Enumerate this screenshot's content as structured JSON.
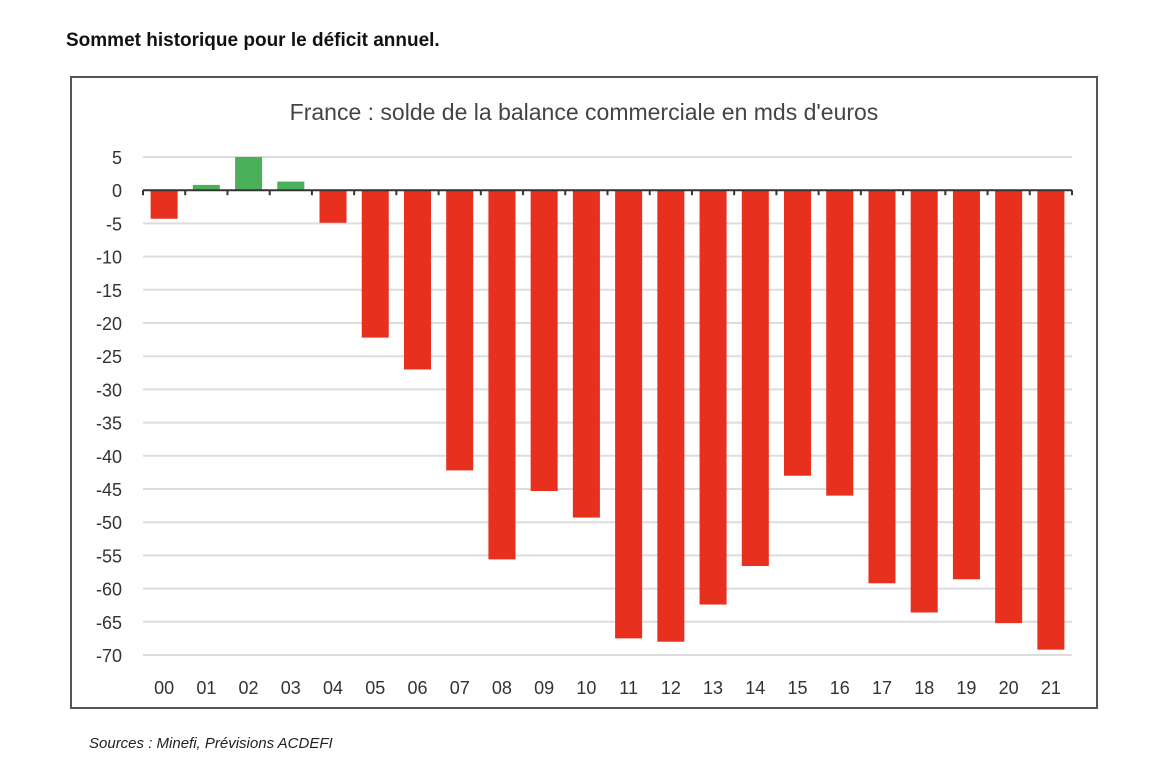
{
  "headline": "Sommet historique pour le déficit annuel.",
  "source": "Sources : Minefi, Prévisions ACDEFI",
  "colors": {
    "positive": "#4caf5a",
    "negative": "#e8301f",
    "grid": "#dddddd",
    "axis": "#333333"
  },
  "chart_data": {
    "type": "bar",
    "title": "France : solde de la balance commerciale en mds d'euros",
    "xlabel": "",
    "ylabel": "",
    "ylim": [
      -70,
      5
    ],
    "yticks": [
      5,
      0,
      -5,
      -10,
      -15,
      -20,
      -25,
      -30,
      -35,
      -40,
      -45,
      -50,
      -55,
      -60,
      -65,
      -70
    ],
    "grid": true,
    "categories": [
      "00",
      "01",
      "02",
      "03",
      "04",
      "05",
      "06",
      "07",
      "08",
      "09",
      "10",
      "11",
      "12",
      "13",
      "14",
      "15",
      "16",
      "17",
      "18",
      "19",
      "20",
      "21"
    ],
    "values": [
      -4.3,
      0.8,
      5.0,
      1.3,
      -4.9,
      -22.2,
      -27.0,
      -42.2,
      -55.6,
      -45.3,
      -49.3,
      -67.5,
      -68.0,
      -62.4,
      -56.6,
      -43.0,
      -46.0,
      -59.2,
      -63.6,
      -58.6,
      -65.2,
      -69.2
    ]
  }
}
